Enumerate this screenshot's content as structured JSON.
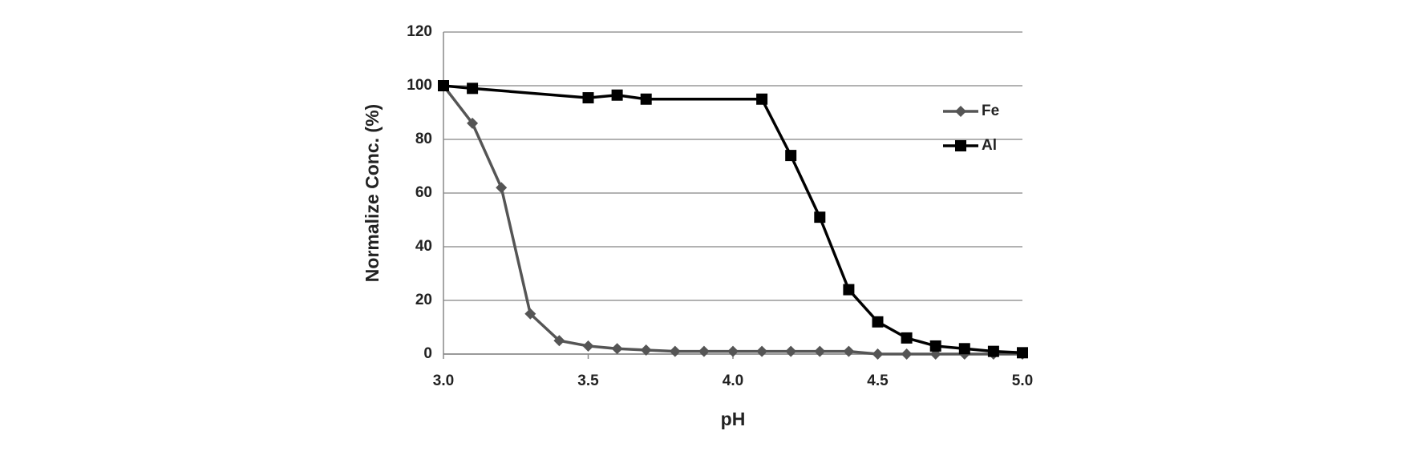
{
  "chart_data": {
    "type": "line",
    "x_label": "pH",
    "y_label": "Normalize Conc. (%)",
    "xlim": [
      3,
      5
    ],
    "xticks": [
      {
        "value": 3,
        "label": "3.0"
      },
      3.5,
      {
        "value": 4,
        "label": "4.0"
      },
      4.5,
      {
        "value": 5,
        "label": "5.0"
      }
    ],
    "ylim": [
      0,
      120
    ],
    "yticks": [
      0,
      20,
      40,
      60,
      80,
      100,
      120
    ],
    "grid": true,
    "legend": "right",
    "series": [
      {
        "name": "Fe",
        "color": "#555555",
        "marker": "diamond",
        "x": [
          3.0,
          3.1,
          3.2,
          3.3,
          3.4,
          3.5,
          3.6,
          3.7,
          3.8,
          3.9,
          4.0,
          4.1,
          4.2,
          4.3,
          4.4,
          4.5,
          4.6,
          4.7,
          4.8,
          4.9,
          5.0
        ],
        "values": [
          100,
          86,
          62,
          15,
          5,
          3,
          2,
          1.5,
          1,
          1,
          1,
          1,
          1,
          1,
          1,
          0,
          0,
          0,
          0,
          0,
          0
        ]
      },
      {
        "name": "Al",
        "color": "#000000",
        "marker": "square",
        "x": [
          3.0,
          3.1,
          3.5,
          3.6,
          3.7,
          4.1,
          4.2,
          4.3,
          4.4,
          4.5,
          4.6,
          4.7,
          4.8,
          4.9,
          5.0
        ],
        "values": [
          100,
          99,
          95.5,
          96.5,
          95,
          95,
          74,
          51,
          24,
          12,
          6,
          3,
          2,
          1,
          0.5
        ]
      }
    ]
  }
}
